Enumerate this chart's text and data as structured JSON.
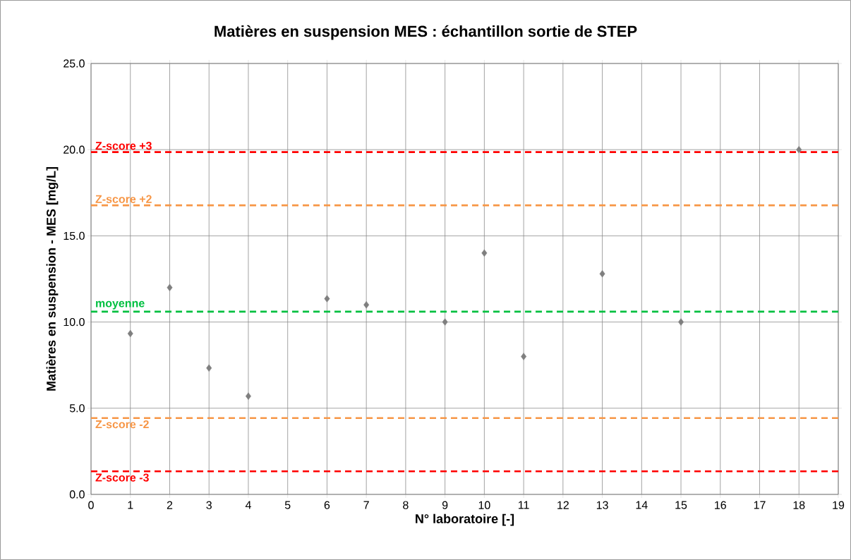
{
  "chart_data": {
    "type": "scatter",
    "title": "Matières en suspension MES : échantillon sortie de STEP",
    "xlabel": "N° laboratoire [-]",
    "ylabel": "Matières en suspension - MES [mg/L]",
    "x": [
      1,
      2,
      3,
      4,
      6,
      7,
      9,
      10,
      11,
      13,
      15,
      18
    ],
    "series": [
      {
        "color": "#7f7f7f",
        "values": [
          9.33,
          12.0,
          7.33,
          5.7,
          11.35,
          11.0,
          10.0,
          14.0,
          8.0,
          12.8,
          10.0,
          20.0
        ]
      }
    ],
    "marker": "diamond",
    "xlim": [
      0,
      19
    ],
    "xticks": [
      0,
      1,
      2,
      3,
      4,
      5,
      6,
      7,
      8,
      9,
      10,
      11,
      12,
      13,
      14,
      15,
      16,
      17,
      18,
      19
    ],
    "ylim": [
      0,
      25
    ],
    "yticks": [
      {
        "value": 0,
        "label": "0.0"
      },
      {
        "value": 5,
        "label": "5.0"
      },
      {
        "value": 10,
        "label": "10.0"
      },
      {
        "value": 15,
        "label": "15.0"
      },
      {
        "value": 20,
        "label": "20.0"
      },
      {
        "value": 25,
        "label": "25.0"
      }
    ],
    "grid": true,
    "ref_lines": [
      {
        "axis": "y",
        "value": 19.86,
        "label": "Z-score +3",
        "color": "#ff0000",
        "line_style": "dashed"
      },
      {
        "axis": "y",
        "value": 16.77,
        "label": "Z-score +2",
        "color": "#f79646",
        "line_style": "dashed"
      },
      {
        "axis": "y",
        "value": 10.6,
        "label": "moyenne",
        "color": "#00c040",
        "line_style": "dashed"
      },
      {
        "axis": "y",
        "value": 4.43,
        "label": "Z-score -2",
        "color": "#f79646",
        "line_style": "dashed"
      },
      {
        "axis": "y",
        "value": 1.34,
        "label": "Z-score -3",
        "color": "#ff0000",
        "line_style": "dashed"
      }
    ]
  }
}
